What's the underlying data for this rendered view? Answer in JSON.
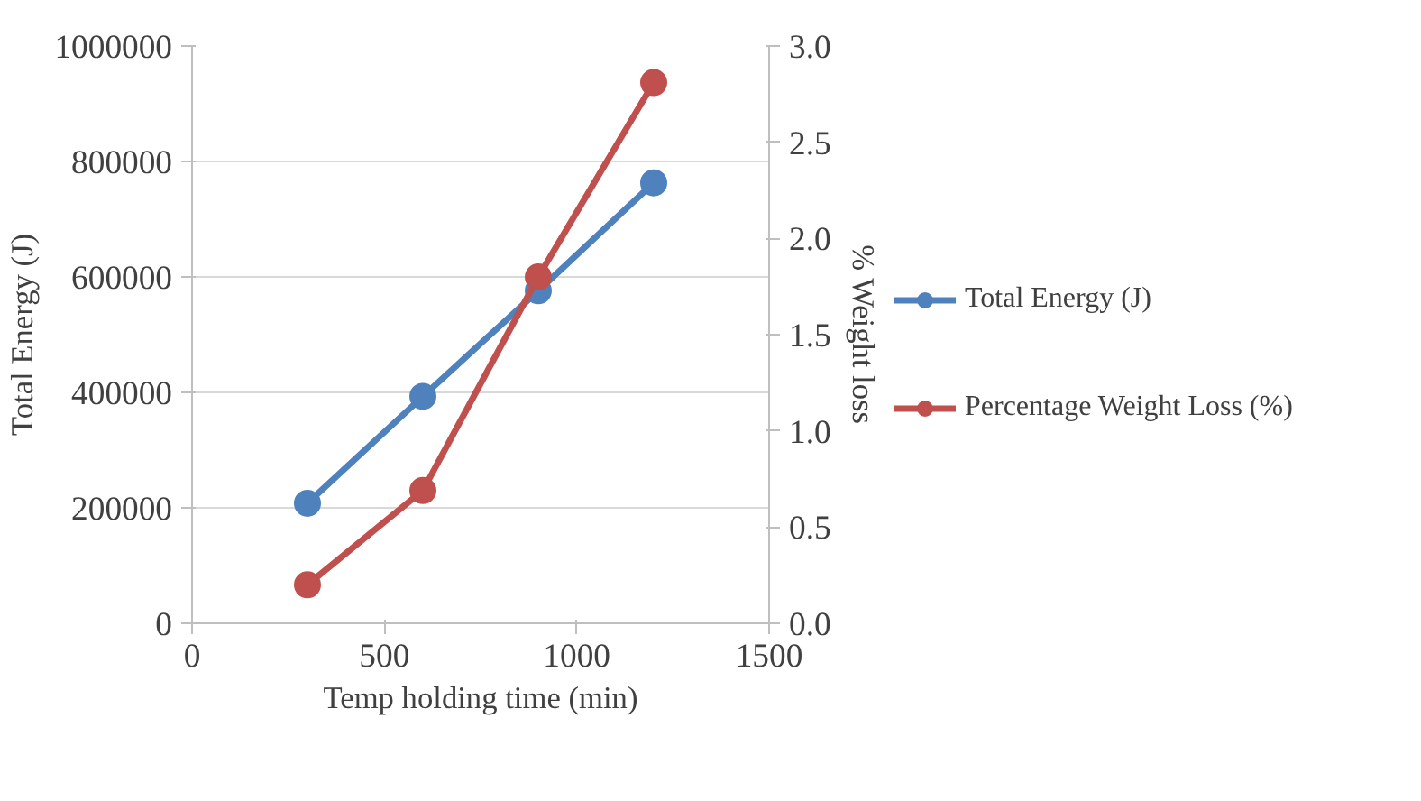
{
  "chart_data": {
    "type": "line",
    "xlabel": "Temp holding time (min)",
    "ylabel": "Total Energy (J)",
    "y2label": "% Weight loss",
    "x": [
      300,
      600,
      900,
      1200
    ],
    "series": [
      {
        "name": "Total Energy (J)",
        "color": "#4f81bd",
        "values": [
          208000,
          393000,
          576000,
          763000
        ]
      },
      {
        "name": "Percentage Weight Loss (%)",
        "color": "#c0504d",
        "values": [
          0.2,
          0.69,
          1.8,
          2.81
        ],
        "axis": "y2"
      }
    ],
    "xlim": [
      0,
      1500
    ],
    "xticks": [
      0,
      500,
      1000,
      1500
    ],
    "ylim": [
      0,
      1000000
    ],
    "yticks": [
      0,
      200000,
      400000,
      600000,
      800000,
      1000000
    ],
    "y2lim": [
      0,
      3.0
    ],
    "y2ticks": [
      {
        "value": 0,
        "label": "0.0"
      },
      {
        "value": 0.5,
        "label": "0.5"
      },
      {
        "value": 1,
        "label": "1.0"
      },
      {
        "value": 1.5,
        "label": "1.5"
      },
      {
        "value": 2,
        "label": "2.0"
      },
      {
        "value": 2.5,
        "label": "2.5"
      },
      {
        "value": 3,
        "label": "3.0"
      }
    ],
    "grid": "y",
    "legend": "right",
    "marker": "circle",
    "line_style": "solid"
  }
}
